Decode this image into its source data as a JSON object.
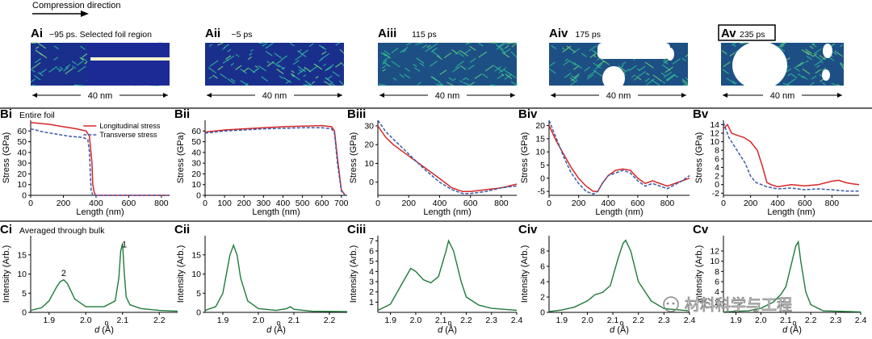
{
  "header": {
    "compression_label": "Compression direction"
  },
  "colors": {
    "stress_long": "#d62728",
    "stress_trans": "#3b5ba9",
    "intensity": "#1f7a3a",
    "md_bg": "#1a2f8c",
    "md_feature": "#2ec4a0",
    "void": "#ffffff"
  },
  "row_a": [
    {
      "id": "Ai",
      "time": "−95 ps. Selected foil region",
      "scale": "40 nm"
    },
    {
      "id": "Aii",
      "time": "−5 ps",
      "scale": "40 nm"
    },
    {
      "id": "Aiii",
      "time": "115 ps",
      "scale": "40 nm"
    },
    {
      "id": "Aiv",
      "time": "175 ps",
      "scale": "40 nm"
    },
    {
      "id": "Av",
      "time": "235 ps",
      "scale": "40 nm"
    }
  ],
  "row_b_note": "Entire foil",
  "row_c_note": "Averaged through bulk",
  "chart_data": [
    {
      "panel": "Bi",
      "type": "line",
      "xlabel": "Length (nm)",
      "ylabel": "Stress (GPa)",
      "xlim": [
        0,
        850
      ],
      "ylim": [
        0,
        70
      ],
      "xticks": [
        0,
        200,
        400,
        600,
        800
      ],
      "yticks": [
        0,
        10,
        20,
        30,
        40,
        50,
        60
      ],
      "legend": [
        "Longitudinal stress",
        "Transverse stress"
      ],
      "series": [
        {
          "name": "Longitudinal stress",
          "style": "solid",
          "x": [
            0,
            60,
            120,
            200,
            280,
            340,
            360,
            375,
            380,
            390,
            400,
            850
          ],
          "y": [
            68,
            67,
            66,
            64,
            62,
            60,
            55,
            30,
            10,
            2,
            0,
            0
          ]
        },
        {
          "name": "Transverse stress",
          "style": "dashed",
          "x": [
            0,
            80,
            160,
            240,
            320,
            350,
            360,
            365,
            370,
            380,
            850
          ],
          "y": [
            62,
            59,
            57,
            55,
            54,
            52,
            40,
            20,
            5,
            0,
            0
          ]
        }
      ]
    },
    {
      "panel": "Bii",
      "type": "line",
      "xlabel": "Length (nm)",
      "ylabel": "Stress (GPa)",
      "xlim": [
        0,
        730
      ],
      "ylim": [
        0,
        70
      ],
      "xticks": [
        0,
        100,
        200,
        300,
        400,
        500,
        600,
        700
      ],
      "yticks": [
        0,
        10,
        20,
        30,
        40,
        50,
        60
      ],
      "series": [
        {
          "name": "Longitudinal stress",
          "style": "solid",
          "x": [
            0,
            100,
            200,
            300,
            400,
            500,
            600,
            650,
            665,
            680,
            700,
            720
          ],
          "y": [
            59,
            61,
            62,
            63,
            64,
            64.5,
            65,
            64,
            60,
            35,
            5,
            0
          ]
        },
        {
          "name": "Transverse stress",
          "style": "dashed",
          "x": [
            0,
            100,
            200,
            300,
            400,
            500,
            600,
            650,
            665,
            680,
            700,
            720
          ],
          "y": [
            58,
            60,
            61,
            62,
            62.5,
            63,
            63,
            62,
            58,
            30,
            4,
            0
          ]
        }
      ]
    },
    {
      "panel": "Biii",
      "type": "line",
      "xlabel": "Length (nm)",
      "ylabel": "Stress (GPa)",
      "xlim": [
        0,
        900
      ],
      "ylim": [
        -7,
        33
      ],
      "xticks": [
        0,
        200,
        400,
        600,
        800
      ],
      "yticks": [
        0,
        10,
        20,
        30
      ],
      "series": [
        {
          "name": "Longitudinal stress",
          "style": "solid",
          "x": [
            0,
            50,
            100,
            200,
            300,
            400,
            480,
            550,
            600,
            700,
            800,
            900
          ],
          "y": [
            30,
            24,
            20,
            14,
            8,
            2,
            -3,
            -5,
            -5,
            -4,
            -3,
            -1
          ]
        },
        {
          "name": "Transverse stress",
          "style": "dashed",
          "x": [
            0,
            50,
            100,
            200,
            300,
            400,
            480,
            550,
            600,
            700,
            800,
            900
          ],
          "y": [
            33,
            27,
            23,
            15,
            7,
            0,
            -4,
            -6,
            -6,
            -5,
            -3,
            -2
          ]
        }
      ]
    },
    {
      "panel": "Biv",
      "type": "line",
      "xlabel": "Length (nm)",
      "ylabel": "Stress (GPa)",
      "xlim": [
        0,
        950
      ],
      "ylim": [
        -6.5,
        22
      ],
      "xticks": [
        0,
        200,
        400,
        600,
        800
      ],
      "yticks": [
        -5,
        0,
        5,
        10,
        15,
        20
      ],
      "series": [
        {
          "name": "Longitudinal stress",
          "style": "solid",
          "x": [
            0,
            50,
            100,
            150,
            200,
            250,
            300,
            330,
            360,
            400,
            450,
            500,
            550,
            600,
            650,
            700,
            800,
            900,
            950
          ],
          "y": [
            20,
            14,
            9,
            4,
            0,
            -3,
            -5,
            -5,
            -2,
            1,
            3,
            3.5,
            3,
            0,
            -2,
            -1,
            -3,
            -1,
            0
          ]
        },
        {
          "name": "Transverse stress",
          "style": "dashed",
          "x": [
            0,
            50,
            100,
            150,
            200,
            250,
            300,
            330,
            360,
            400,
            450,
            500,
            550,
            600,
            650,
            700,
            800,
            900,
            950
          ],
          "y": [
            22,
            15,
            8,
            2,
            -2,
            -5,
            -6,
            -5,
            -2,
            1,
            2,
            3,
            2,
            -1,
            -3,
            -2,
            -4,
            -1,
            1
          ]
        }
      ]
    },
    {
      "panel": "Bv",
      "type": "line",
      "xlabel": "Length (nm)",
      "ylabel": "Stress (GPa)",
      "xlim": [
        0,
        1000
      ],
      "ylim": [
        -2.5,
        15
      ],
      "xticks": [
        0,
        200,
        400,
        600,
        800
      ],
      "yticks": [
        -2,
        0,
        2,
        4,
        6,
        8,
        10,
        12,
        14
      ],
      "series": [
        {
          "name": "Longitudinal stress",
          "style": "solid",
          "x": [
            0,
            30,
            60,
            100,
            150,
            200,
            250,
            290,
            320,
            350,
            400,
            500,
            600,
            700,
            800,
            850,
            900,
            950,
            1000
          ],
          "y": [
            13,
            14,
            12,
            11.5,
            11,
            10,
            8,
            4,
            0.5,
            0,
            -0.5,
            0,
            -0.3,
            0,
            0.8,
            1,
            0.5,
            0.2,
            0
          ]
        },
        {
          "name": "Transverse stress",
          "style": "dashed",
          "x": [
            0,
            40,
            80,
            120,
            160,
            200,
            240,
            280,
            320,
            400,
            500,
            600,
            700,
            800,
            900,
            1000
          ],
          "y": [
            14.5,
            11,
            9,
            7,
            5,
            2,
            0.5,
            0,
            -0.5,
            -1,
            -0.8,
            -1.2,
            -1,
            -1.2,
            -1.5,
            -1.5
          ]
        }
      ]
    },
    {
      "panel": "Ci",
      "type": "line",
      "xlabel": "d (Å)",
      "ylabel": "Intensity (Arb.)",
      "xlim": [
        1.85,
        2.25
      ],
      "ylim": [
        0,
        20
      ],
      "xticks": [
        1.9,
        2.0,
        2.1,
        2.2
      ],
      "yticks": [
        0,
        5,
        10,
        15
      ],
      "peak_labels": [
        {
          "text": "2",
          "x": 1.94,
          "y": 9.5
        },
        {
          "text": "1",
          "x": 2.105,
          "y": 17
        }
      ],
      "series": [
        {
          "name": "Intensity",
          "x": [
            1.85,
            1.88,
            1.9,
            1.92,
            1.93,
            1.94,
            1.95,
            1.97,
            2.0,
            2.05,
            2.08,
            2.09,
            2.095,
            2.1,
            2.105,
            2.11,
            2.12,
            2.15,
            2.2,
            2.25
          ],
          "y": [
            0.5,
            1.2,
            3,
            6.5,
            8,
            8.5,
            7.5,
            3.5,
            1.5,
            1.5,
            3,
            9,
            16,
            18,
            10,
            4,
            2,
            1,
            0.5,
            0.3
          ]
        }
      ]
    },
    {
      "panel": "Cii",
      "type": "line",
      "xlabel": "d (Å)",
      "ylabel": "Intensity (Arb.)",
      "xlim": [
        1.85,
        2.25
      ],
      "ylim": [
        0,
        20
      ],
      "xticks": [
        1.9,
        2.0,
        2.1,
        2.2
      ],
      "yticks": [
        0,
        5,
        10,
        15
      ],
      "series": [
        {
          "name": "Intensity",
          "x": [
            1.85,
            1.88,
            1.9,
            1.91,
            1.92,
            1.93,
            1.94,
            1.95,
            1.97,
            2.0,
            2.05,
            2.08,
            2.09,
            2.1,
            2.15,
            2.25
          ],
          "y": [
            0.5,
            1.5,
            5,
            10,
            15,
            17.5,
            15,
            9,
            3,
            1,
            0.5,
            1,
            1.5,
            0.8,
            0.3,
            0.2
          ]
        }
      ]
    },
    {
      "panel": "Ciii",
      "type": "line",
      "xlabel": "d (Å)",
      "ylabel": "Intensity (Arb.)",
      "xlim": [
        1.85,
        2.4
      ],
      "ylim": [
        0,
        7.5
      ],
      "xticks": [
        1.9,
        2.0,
        2.1,
        2.2,
        2.3,
        2.4
      ],
      "yticks": [
        1,
        2,
        3,
        4,
        5,
        6,
        7
      ],
      "series": [
        {
          "name": "Intensity",
          "x": [
            1.85,
            1.9,
            1.95,
            1.98,
            2.0,
            2.03,
            2.06,
            2.09,
            2.12,
            2.13,
            2.15,
            2.18,
            2.2,
            2.25,
            2.3,
            2.4
          ],
          "y": [
            0.2,
            0.8,
            3,
            4.3,
            4,
            3.2,
            2.9,
            3.5,
            6,
            7,
            6,
            3,
            1.5,
            0.7,
            0.4,
            0.2
          ]
        }
      ]
    },
    {
      "panel": "Civ",
      "type": "line",
      "xlabel": "d (Å)",
      "ylabel": "Intensity (Arb.)",
      "xlim": [
        1.85,
        2.4
      ],
      "ylim": [
        0,
        10
      ],
      "xticks": [
        1.9,
        2.0,
        2.1,
        2.2,
        2.3,
        2.4
      ],
      "yticks": [
        0,
        2,
        4,
        6,
        8
      ],
      "series": [
        {
          "name": "Intensity",
          "x": [
            1.85,
            1.9,
            1.95,
            2.0,
            2.03,
            2.06,
            2.09,
            2.12,
            2.14,
            2.15,
            2.17,
            2.2,
            2.25,
            2.3,
            2.4
          ],
          "y": [
            0.1,
            0.3,
            0.7,
            1.5,
            2.3,
            2.6,
            3.5,
            7,
            9,
            9.4,
            8,
            4,
            1.5,
            0.5,
            0.2
          ]
        }
      ]
    },
    {
      "panel": "Cv",
      "type": "line",
      "xlabel": "d (Å)",
      "ylabel": "Intensity (Arb.)",
      "xlim": [
        1.85,
        2.4
      ],
      "ylim": [
        0,
        15
      ],
      "xticks": [
        1.9,
        2.0,
        2.1,
        2.2,
        2.3,
        2.4
      ],
      "yticks": [
        2,
        4,
        6,
        8,
        10,
        12
      ],
      "series": [
        {
          "name": "Intensity",
          "x": [
            1.85,
            1.95,
            2.0,
            2.05,
            2.08,
            2.1,
            2.12,
            2.14,
            2.15,
            2.16,
            2.18,
            2.2,
            2.25,
            2.4
          ],
          "y": [
            0.1,
            0.3,
            0.8,
            2,
            3.5,
            5,
            9,
            13,
            13.8,
            10,
            4,
            1.5,
            0.3,
            0.1
          ]
        }
      ]
    }
  ],
  "watermark": {
    "text": "材料科学与工程"
  }
}
